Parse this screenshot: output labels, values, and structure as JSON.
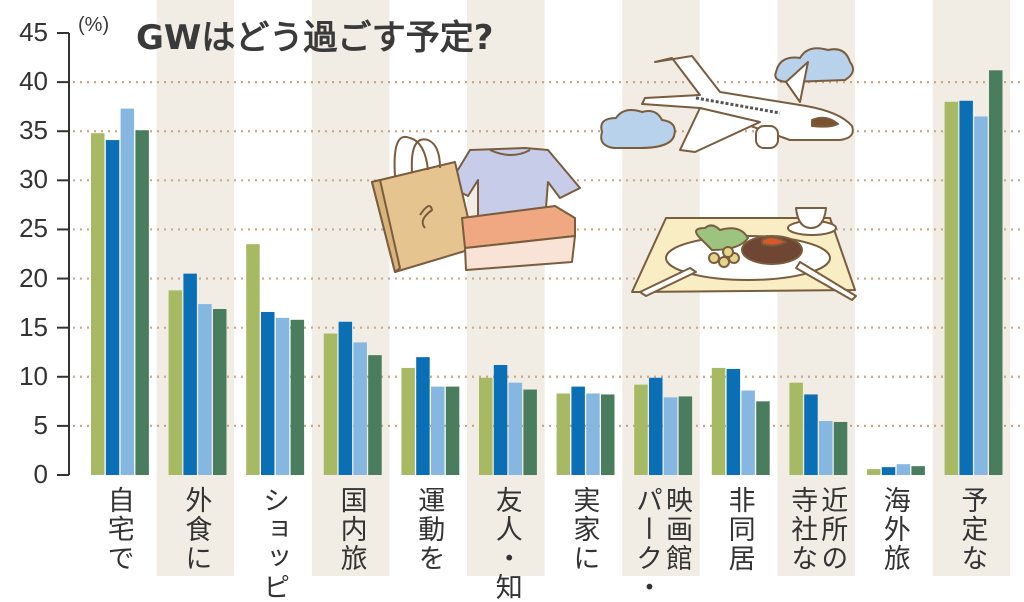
{
  "chart_data": {
    "type": "bar",
    "title": "GWはどう過ごす予定?",
    "ylabel": "(%)",
    "xlabel": "",
    "ylim": [
      0,
      45
    ],
    "yticks": [
      0,
      5,
      10,
      15,
      20,
      25,
      30,
      35,
      40,
      45
    ],
    "grid": "dotted horizontal",
    "legend": "not visible",
    "categories": [
      [
        "自宅で"
      ],
      [
        "外食に"
      ],
      [
        "ショッピ"
      ],
      [
        "国内旅"
      ],
      [
        "運動を"
      ],
      [
        "友人・知"
      ],
      [
        "実家に"
      ],
      [
        "映画館",
        "パーク・"
      ],
      [
        "非同居"
      ],
      [
        "近所の",
        "寺社な"
      ],
      [
        "海外旅"
      ],
      [
        "予定な"
      ]
    ],
    "series": [
      {
        "name": "series-1",
        "color": "#a8b964",
        "values": [
          34.8,
          18.8,
          23.5,
          14.4,
          10.9,
          9.9,
          8.3,
          9.2,
          10.9,
          9.4,
          0.6,
          38.0
        ]
      },
      {
        "name": "series-2",
        "color": "#0a6fb4",
        "values": [
          34.1,
          20.5,
          16.6,
          15.6,
          12.0,
          11.2,
          9.0,
          9.9,
          10.8,
          8.2,
          0.8,
          38.1
        ]
      },
      {
        "name": "series-3",
        "color": "#85b7e0",
        "values": [
          37.3,
          17.4,
          16.0,
          13.5,
          9.0,
          9.4,
          8.3,
          7.9,
          8.6,
          5.5,
          1.1,
          36.5
        ]
      },
      {
        "name": "series-4",
        "color": "#4a7d5e",
        "values": [
          35.1,
          16.9,
          15.8,
          12.2,
          9.0,
          8.7,
          8.2,
          8.0,
          7.5,
          5.4,
          0.9,
          41.2
        ]
      }
    ]
  },
  "header": {
    "title": "GWはどう過ごす予定?",
    "unit": "(%)"
  },
  "illustrations": [
    "shopping-bag-clothes-box",
    "airplane-clouds",
    "meal-plate"
  ],
  "colors": {
    "band": "#f1ede4",
    "grid": "#c8a98a",
    "axis": "#333333"
  }
}
